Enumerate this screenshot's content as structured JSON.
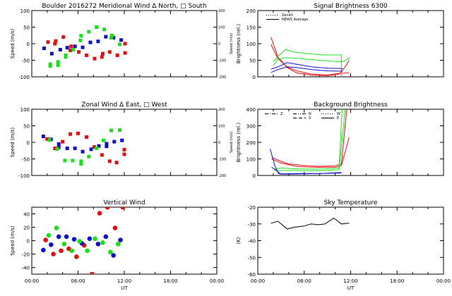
{
  "colors": {
    "red": "#e01010",
    "green": "#18e018",
    "blue": "#1010c8",
    "axis": "#000000"
  },
  "x_tick_labels": [
    "00:00",
    "06:00",
    "12:00",
    "18:00",
    "00:00"
  ],
  "x_axis_label": "UT",
  "chart_data": [
    {
      "id": "meridional",
      "type": "scatter",
      "title": "Boulder   2016272     Meridional Wind   Δ North, □ South",
      "ylabel": "Speed (m/s)",
      "ylim": [
        -100,
        100
      ],
      "yticks": [
        "100",
        "50",
        "0",
        "-50",
        "-100"
      ],
      "y2label": "Speed (m/s)",
      "y2ticks": [
        "200",
        "100",
        "0",
        "-100",
        "-200"
      ],
      "xlim": [
        0,
        24
      ],
      "series": [
        {
          "color": "red",
          "points": [
            [
              2.1,
              5
            ],
            [
              3.0,
              0
            ],
            [
              3.1,
              8
            ],
            [
              4.1,
              20
            ],
            [
              5.0,
              -20
            ],
            [
              5.1,
              -8
            ],
            [
              6.1,
              -25
            ],
            [
              7.1,
              -35
            ],
            [
              8.15,
              -45
            ],
            [
              9.1,
              -40
            ],
            [
              9.2,
              -30
            ],
            [
              10.1,
              -25
            ],
            [
              11.1,
              -35
            ],
            [
              12.1,
              -28
            ],
            [
              12.1,
              0
            ]
          ]
        },
        {
          "color": "blue",
          "points": [
            [
              1.6,
              -14
            ],
            [
              2.6,
              -30
            ],
            [
              3.7,
              -18
            ],
            [
              4.6,
              -12
            ],
            [
              5.6,
              -8
            ],
            [
              6.6,
              -11
            ],
            [
              7.6,
              4
            ],
            [
              8.6,
              7
            ],
            [
              9.6,
              21
            ],
            [
              10.6,
              18
            ],
            [
              11.6,
              11
            ]
          ]
        },
        {
          "color": "green",
          "points": [
            [
              2.4,
              -62
            ],
            [
              2.4,
              -67
            ],
            [
              3.4,
              -55
            ],
            [
              3.4,
              -65
            ],
            [
              4.4,
              -35
            ],
            [
              4.4,
              -40
            ],
            [
              5.4,
              -18
            ],
            [
              6.4,
              24
            ],
            [
              6.3,
              10
            ],
            [
              7.4,
              36
            ],
            [
              8.4,
              50
            ],
            [
              9.4,
              43
            ],
            [
              10.4,
              25
            ],
            [
              10.3,
              18
            ],
            [
              11.4,
              -2
            ]
          ]
        }
      ]
    },
    {
      "id": "zonal",
      "type": "scatter",
      "title": "Zonal Wind      Δ East, □ West",
      "ylabel": "Speed (m/s)",
      "ylim": [
        -100,
        100
      ],
      "yticks": [
        "100",
        "50",
        "0",
        "-50",
        "-100"
      ],
      "y2label": "Speed (m/s)",
      "y2ticks": [
        "200",
        "100",
        "0",
        "-100",
        "-200"
      ],
      "xlim": [
        0,
        24
      ],
      "series": [
        {
          "color": "red",
          "points": [
            [
              2.0,
              10
            ],
            [
              3.0,
              -18
            ],
            [
              4.0,
              2
            ],
            [
              5.0,
              25
            ],
            [
              6.0,
              27
            ],
            [
              7.1,
              16
            ],
            [
              8.1,
              -14
            ],
            [
              9.1,
              -38
            ],
            [
              10.1,
              -57
            ],
            [
              11.0,
              -61
            ],
            [
              12.0,
              -36
            ],
            [
              12.0,
              -22
            ]
          ]
        },
        {
          "color": "blue",
          "points": [
            [
              1.5,
              18
            ],
            [
              2.5,
              9
            ],
            [
              3.5,
              -5
            ],
            [
              3.5,
              -15
            ],
            [
              4.6,
              -18
            ],
            [
              5.6,
              -18
            ],
            [
              6.6,
              -28
            ],
            [
              7.7,
              -21
            ],
            [
              8.7,
              -11
            ],
            [
              9.7,
              -4
            ],
            [
              9.7,
              -12
            ],
            [
              10.7,
              2
            ],
            [
              11.7,
              6
            ]
          ]
        },
        {
          "color": "green",
          "points": [
            [
              2.3,
              7
            ],
            [
              3.3,
              -20
            ],
            [
              4.3,
              -55
            ],
            [
              5.3,
              -55
            ],
            [
              6.4,
              -57
            ],
            [
              6.4,
              -65
            ],
            [
              7.4,
              -43
            ],
            [
              8.4,
              -18
            ],
            [
              9.3,
              6
            ],
            [
              10.3,
              36
            ],
            [
              11.4,
              37
            ]
          ]
        }
      ]
    },
    {
      "id": "vertical",
      "type": "scatter",
      "title": "Vertical Wind",
      "ylabel": "Speed (m/s)",
      "ylim": [
        -50,
        50
      ],
      "yticks": [
        "40",
        "20",
        "0",
        "-20",
        "-40"
      ],
      "xlim": [
        0,
        24
      ],
      "series": [
        {
          "color": "red",
          "points": [
            [
              1.8,
              1
            ],
            [
              2.8,
              -20
            ],
            [
              3.8,
              -15
            ],
            [
              4.8,
              -12
            ],
            [
              5.8,
              -24
            ],
            [
              6.8,
              -7
            ],
            [
              7.8,
              -50
            ],
            [
              8.8,
              41
            ],
            [
              9.8,
              50
            ],
            [
              10.8,
              19
            ],
            [
              11.8,
              50
            ]
          ]
        },
        {
          "color": "blue",
          "points": [
            [
              1.5,
              -14
            ],
            [
              2.5,
              -6
            ],
            [
              3.5,
              6
            ],
            [
              4.5,
              6
            ],
            [
              5.5,
              2
            ],
            [
              6.5,
              -4
            ],
            [
              7.5,
              3
            ],
            [
              8.6,
              -5
            ],
            [
              9.6,
              6
            ],
            [
              10.6,
              -22
            ],
            [
              11.5,
              1
            ]
          ]
        },
        {
          "color": "green",
          "points": [
            [
              2.2,
              8
            ],
            [
              3.2,
              19
            ],
            [
              4.2,
              -5
            ],
            [
              5.2,
              -15
            ],
            [
              6.2,
              -1
            ],
            [
              7.2,
              -15
            ],
            [
              8.2,
              3
            ],
            [
              9.2,
              -3
            ],
            [
              10.2,
              -17
            ],
            [
              11.2,
              -5
            ]
          ]
        }
      ]
    },
    {
      "id": "signal",
      "type": "line",
      "title": "Signal Brightness      6300",
      "ylabel": "Brightness (rel.)",
      "ylim": [
        0,
        200
      ],
      "yticks": [
        "200",
        "150",
        "100",
        "50",
        "0"
      ],
      "xlim": [
        0,
        24
      ],
      "legend": [
        {
          "label": "Zenith",
          "style": "dotted"
        },
        {
          "label": "NEWS Average",
          "style": "solid"
        }
      ],
      "legend_position": "top-left",
      "series": [
        {
          "color": "red",
          "points": [
            [
              1.7,
              120
            ],
            [
              2.6,
              60
            ],
            [
              3.8,
              28
            ],
            [
              5,
              12
            ],
            [
              7,
              5
            ],
            [
              9,
              3
            ],
            [
              10.5,
              8
            ],
            [
              11.3,
              30
            ],
            [
              11.8,
              50
            ]
          ]
        },
        {
          "color": "red",
          "points": [
            [
              1.7,
              98
            ],
            [
              2.6,
              55
            ],
            [
              3.8,
              30
            ],
            [
              5,
              18
            ],
            [
              7,
              8
            ],
            [
              9,
              6
            ],
            [
              10.5,
              10
            ],
            [
              11.8,
              12
            ]
          ]
        },
        {
          "color": "green",
          "points": [
            [
              2.0,
              45
            ],
            [
              2.6,
              62
            ],
            [
              3.6,
              83
            ],
            [
              4.6,
              75
            ],
            [
              6.5,
              70
            ],
            [
              8.5,
              66
            ],
            [
              10.8,
              66
            ],
            [
              10.8,
              0
            ]
          ]
        },
        {
          "color": "green",
          "points": [
            [
              2.0,
              35
            ],
            [
              2.6,
              52
            ],
            [
              3.6,
              58
            ],
            [
              5,
              56
            ],
            [
              7,
              52
            ],
            [
              9,
              48
            ],
            [
              10.6,
              45
            ],
            [
              11.2,
              48
            ],
            [
              11.9,
              57
            ]
          ]
        },
        {
          "color": "blue",
          "points": [
            [
              1.7,
              23
            ],
            [
              2.6,
              30
            ],
            [
              3.8,
              43
            ],
            [
              5,
              38
            ],
            [
              7,
              30
            ],
            [
              9,
              26
            ],
            [
              11,
              25
            ]
          ]
        },
        {
          "color": "blue",
          "points": [
            [
              1.7,
              13
            ],
            [
              2.6,
              22
            ],
            [
              3.8,
              30
            ],
            [
              5,
              28
            ],
            [
              7,
              22
            ],
            [
              9,
              18
            ],
            [
              11,
              17
            ]
          ]
        }
      ]
    },
    {
      "id": "background",
      "type": "line",
      "title": "Background Brightness",
      "ylabel": "Brightness (rel.)",
      "ylim": [
        0,
        400
      ],
      "yticks": [
        "400",
        "300",
        "200",
        "100",
        "0"
      ],
      "xlim": [
        0,
        24
      ],
      "legend": [
        {
          "label": "Z",
          "style": "dashdot"
        },
        {
          "label": "N",
          "style": "dashdotdot"
        },
        {
          "label": "S",
          "style": "dashed"
        },
        {
          "label": "W",
          "style": "dotted"
        },
        {
          "label": "E",
          "style": "solid"
        }
      ],
      "legend_position": "top-left",
      "series": [
        {
          "color": "red",
          "points": [
            [
              1.8,
              110
            ],
            [
              3,
              85
            ],
            [
              4,
              70
            ],
            [
              6,
              60
            ],
            [
              8,
              55
            ],
            [
              10,
              58
            ],
            [
              10.8,
              70
            ],
            [
              11.5,
              400
            ]
          ]
        },
        {
          "color": "red",
          "points": [
            [
              1.8,
              100
            ],
            [
              3,
              75
            ],
            [
              5,
              55
            ],
            [
              7,
              50
            ],
            [
              10,
              50
            ],
            [
              10.8,
              60
            ],
            [
              11.8,
              230
            ]
          ]
        },
        {
          "color": "green",
          "points": [
            [
              2.2,
              40
            ],
            [
              3,
              45
            ],
            [
              5,
              40
            ],
            [
              8,
              38
            ],
            [
              10.5,
              45
            ],
            [
              10.9,
              400
            ]
          ]
        },
        {
          "color": "green",
          "points": [
            [
              2.2,
              30
            ],
            [
              4,
              30
            ],
            [
              8,
              28
            ],
            [
              10.5,
              35
            ],
            [
              11.3,
              400
            ]
          ]
        },
        {
          "color": "blue",
          "points": [
            [
              1.6,
              160
            ],
            [
              2.2,
              60
            ],
            [
              2.7,
              10
            ],
            [
              5,
              12
            ],
            [
              8,
              12
            ],
            [
              10.8,
              18
            ]
          ]
        },
        {
          "color": "blue",
          "points": [
            [
              1.8,
              50
            ],
            [
              2.4,
              30
            ],
            [
              3,
              8
            ],
            [
              6,
              10
            ],
            [
              10.8,
              15
            ]
          ]
        }
      ]
    },
    {
      "id": "skytemp",
      "type": "line",
      "title": "Sky Temperature",
      "ylabel": "(K)",
      "ylim": [
        -60,
        -20
      ],
      "yticks": [
        "-20",
        "-30",
        "-40",
        "-50",
        "-60"
      ],
      "xlim": [
        0,
        24
      ],
      "series": [
        {
          "color": "axis",
          "points": [
            [
              1.7,
              -29.6
            ],
            [
              2.6,
              -28.4
            ],
            [
              3.8,
              -33
            ],
            [
              4.7,
              -32
            ],
            [
              5.95,
              -31.3
            ],
            [
              6.9,
              -30
            ],
            [
              7.8,
              -30.5
            ],
            [
              8.7,
              -30
            ],
            [
              9.8,
              -26.5
            ],
            [
              10.8,
              -30
            ],
            [
              11.8,
              -29.5
            ]
          ]
        }
      ]
    }
  ]
}
